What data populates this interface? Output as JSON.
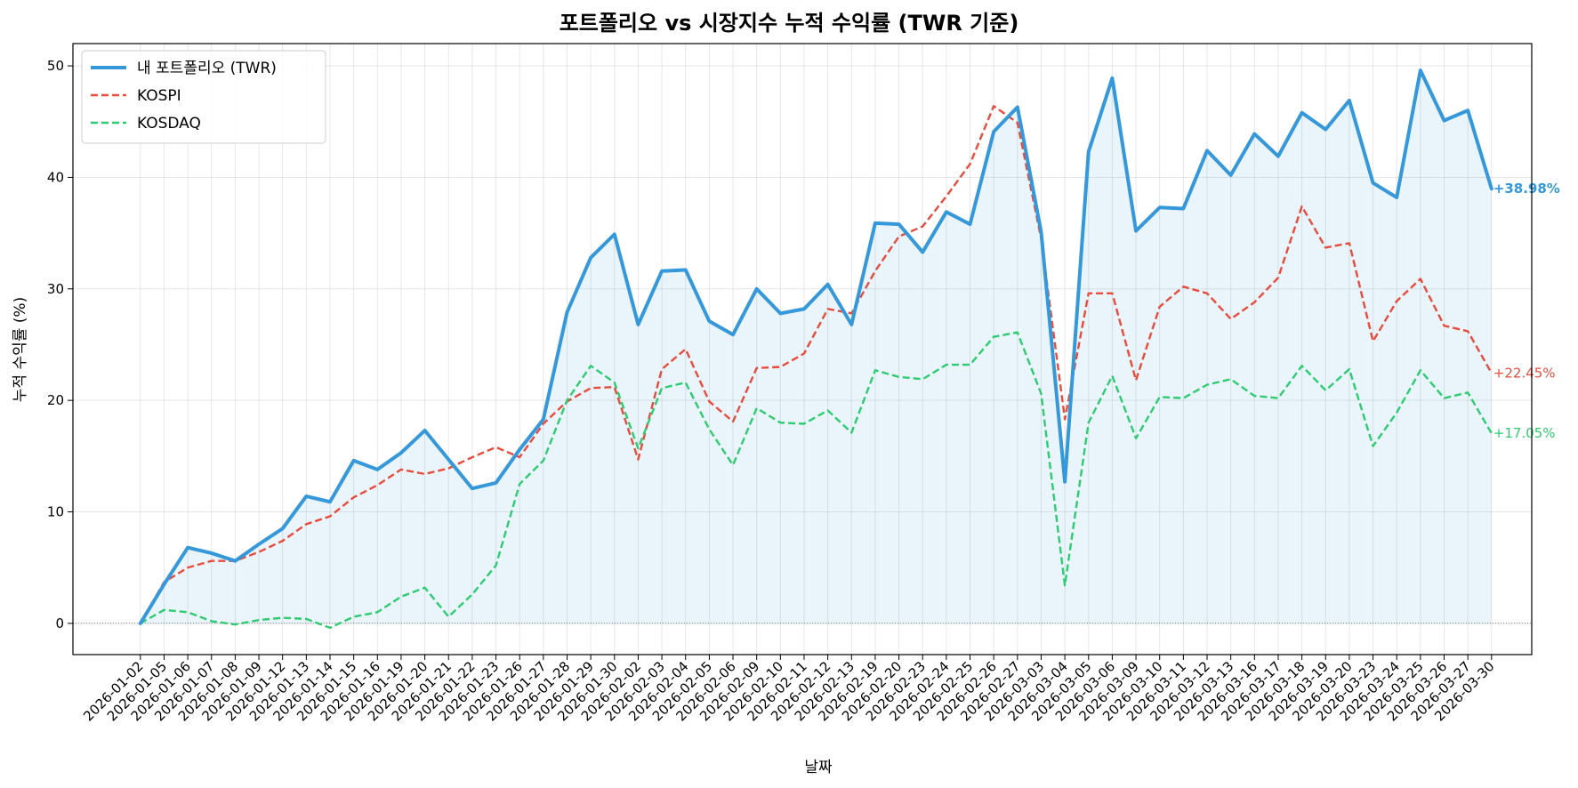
{
  "chart_data": {
    "type": "line",
    "title": "포트폴리오 vs 시장지수 누적 수익률 (TWR 기준)",
    "xlabel": "날짜",
    "ylabel": "누적 수익률 (%)",
    "ylim": [
      -2.8,
      52
    ],
    "yticks": [
      "0",
      "10",
      "20",
      "30",
      "40",
      "50"
    ],
    "grid": true,
    "legend_position": "top-left",
    "x": [
      "2026-01-02",
      "2026-01-05",
      "2026-01-06",
      "2026-01-07",
      "2026-01-08",
      "2026-01-09",
      "2026-01-12",
      "2026-01-13",
      "2026-01-14",
      "2026-01-15",
      "2026-01-16",
      "2026-01-19",
      "2026-01-20",
      "2026-01-21",
      "2026-01-22",
      "2026-01-23",
      "2026-01-26",
      "2026-01-27",
      "2026-01-28",
      "2026-01-29",
      "2026-01-30",
      "2026-02-02",
      "2026-02-03",
      "2026-02-04",
      "2026-02-05",
      "2026-02-06",
      "2026-02-09",
      "2026-02-10",
      "2026-02-11",
      "2026-02-12",
      "2026-02-13",
      "2026-02-19",
      "2026-02-20",
      "2026-02-23",
      "2026-02-24",
      "2026-02-25",
      "2026-02-26",
      "2026-02-27",
      "2026-03-03",
      "2026-03-04",
      "2026-03-05",
      "2026-03-06",
      "2026-03-09",
      "2026-03-10",
      "2026-03-11",
      "2026-03-12",
      "2026-03-13",
      "2026-03-16",
      "2026-03-17",
      "2026-03-18",
      "2026-03-19",
      "2026-03-20",
      "2026-03-23",
      "2026-03-24",
      "2026-03-25",
      "2026-03-26",
      "2026-03-27",
      "2026-03-30"
    ],
    "series": [
      {
        "name": "내 포트폴리오 (TWR)",
        "color": "#3498db",
        "style": "solid",
        "fill": true,
        "end_label": "+38.98%",
        "values": [
          0,
          3.5,
          6.8,
          6.3,
          5.6,
          7.1,
          8.5,
          11.4,
          10.9,
          14.6,
          13.8,
          15.3,
          17.3,
          14.7,
          12.1,
          12.6,
          15.6,
          18.3,
          27.9,
          32.8,
          34.9,
          26.8,
          31.6,
          31.7,
          27.1,
          25.9,
          30.0,
          27.8,
          28.2,
          30.4,
          26.8,
          35.9,
          35.8,
          33.3,
          36.9,
          35.8,
          44.1,
          46.3,
          35.1,
          12.7,
          42.3,
          48.9,
          35.2,
          37.3,
          37.2,
          42.4,
          40.2,
          43.9,
          41.9,
          45.8,
          44.3,
          46.9,
          39.5,
          38.2,
          49.6,
          45.1,
          46.0,
          38.98
        ]
      },
      {
        "name": "KOSPI",
        "color": "#e74c3c",
        "style": "dashed",
        "end_label": "+22.45%",
        "values": [
          0,
          3.7,
          5.0,
          5.6,
          5.6,
          6.4,
          7.4,
          8.9,
          9.6,
          11.3,
          12.4,
          13.8,
          13.4,
          13.9,
          14.9,
          15.8,
          14.9,
          17.9,
          19.9,
          21.1,
          21.2,
          14.7,
          22.8,
          24.6,
          19.9,
          18.1,
          22.9,
          23.0,
          24.2,
          28.2,
          27.8,
          31.6,
          34.7,
          35.6,
          38.3,
          41.2,
          46.4,
          44.9,
          34.5,
          18.3,
          29.6,
          29.6,
          21.8,
          28.4,
          30.2,
          29.6,
          27.3,
          28.8,
          31.0,
          37.4,
          33.7,
          34.1,
          25.3,
          28.9,
          30.9,
          26.7,
          26.2,
          22.45
        ]
      },
      {
        "name": "KOSDAQ",
        "color": "#2ecc71",
        "style": "dashed",
        "end_label": "+17.05%",
        "values": [
          0,
          1.2,
          1.0,
          0.2,
          -0.1,
          0.3,
          0.5,
          0.4,
          -0.4,
          0.6,
          1.0,
          2.4,
          3.2,
          0.6,
          2.6,
          5.2,
          12.5,
          14.6,
          20.0,
          23.1,
          21.6,
          15.7,
          21.1,
          21.6,
          17.4,
          14.2,
          19.3,
          18.0,
          17.9,
          19.1,
          17.1,
          22.7,
          22.1,
          21.9,
          23.2,
          23.2,
          25.7,
          26.1,
          20.6,
          3.4,
          18.0,
          22.2,
          16.6,
          20.3,
          20.2,
          21.4,
          21.9,
          20.4,
          20.2,
          23.1,
          20.9,
          22.8,
          15.9,
          18.9,
          22.7,
          20.2,
          20.7,
          17.05
        ]
      }
    ]
  }
}
